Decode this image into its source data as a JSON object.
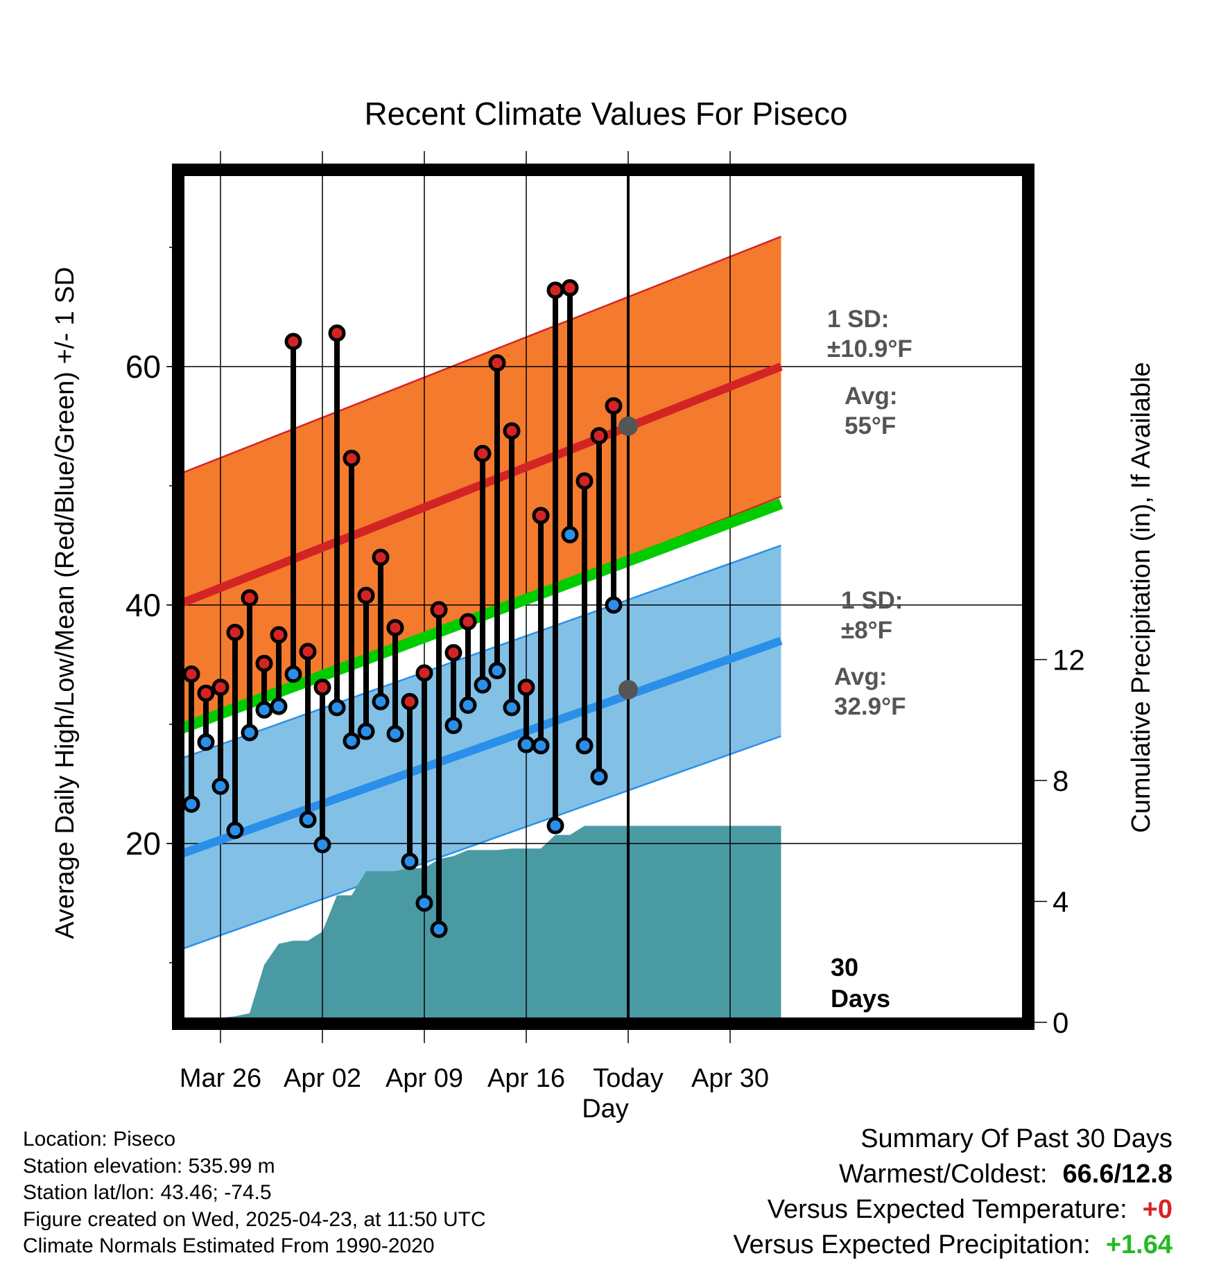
{
  "chart_data": {
    "type": "line",
    "title": "Recent Climate Values For Piseco",
    "xlabel": "Day",
    "ylabel": "Average Daily High/Low/Mean (Red/Blue/Green) +/- 1 SD",
    "y2label": "Cumulative Precipitation (in), If Available",
    "ylim": [
      5,
      76.5
    ],
    "y2lim": [
      0,
      28.2
    ],
    "x_range_days": [
      0,
      41.5
    ],
    "yticks": [
      20,
      40,
      60
    ],
    "y2ticks": [
      0,
      4,
      8,
      12
    ],
    "xtick_labels": [
      {
        "day": 3,
        "label": "Mar 26"
      },
      {
        "day": 10,
        "label": "Apr 02"
      },
      {
        "day": 17,
        "label": "Apr 09"
      },
      {
        "day": 24,
        "label": "Apr 16"
      },
      {
        "day": 31,
        "label": "Today"
      },
      {
        "day": 38,
        "label": "Apr 30"
      }
    ],
    "today_day": 31,
    "today_label": "30 Days",
    "normals": {
      "days": [
        0,
        41.5
      ],
      "high_avg": [
        40,
        60
      ],
      "high_sd": 10.9,
      "low_avg": [
        19,
        37
      ],
      "low_sd": 8,
      "mean": [
        29.5,
        48.5
      ],
      "today_high_avg": 55,
      "today_low_avg": 32.9
    },
    "annotations": {
      "high_sd_line1": "1 SD:",
      "high_sd_line2": "±10.9°F",
      "high_avg_line1": "Avg:",
      "high_avg_line2": "55°F",
      "low_sd_line1": "1 SD:",
      "low_sd_line2": "±8°F",
      "low_avg_line1": "Avg:",
      "low_avg_line2": "32.9°F"
    },
    "series": [
      {
        "name": "Daily High",
        "color": "#d32424",
        "days": [
          1,
          2,
          3,
          4,
          5,
          6,
          7,
          8,
          9,
          10,
          11,
          12,
          13,
          14,
          15,
          16,
          17,
          18,
          19,
          20,
          21,
          22,
          23,
          24,
          25,
          26,
          27,
          28,
          29,
          30
        ],
        "values": [
          34.2,
          32.6,
          33.1,
          37.7,
          40.6,
          35.1,
          37.5,
          62.1,
          36.1,
          33.1,
          62.8,
          52.3,
          40.8,
          44.0,
          38.1,
          31.9,
          34.3,
          39.6,
          36.0,
          38.6,
          52.7,
          60.3,
          54.6,
          33.1,
          47.5,
          66.4,
          66.6,
          50.4,
          54.2,
          56.7
        ]
      },
      {
        "name": "Daily Low",
        "color": "#2a8fe8",
        "days": [
          1,
          2,
          3,
          4,
          5,
          6,
          7,
          8,
          9,
          10,
          11,
          12,
          13,
          14,
          15,
          16,
          17,
          18,
          19,
          20,
          21,
          22,
          23,
          24,
          25,
          26,
          27,
          28,
          29,
          30
        ],
        "values": [
          23.3,
          28.5,
          24.8,
          21.1,
          29.3,
          31.2,
          31.5,
          34.2,
          22.0,
          19.9,
          31.4,
          28.6,
          29.4,
          31.9,
          29.2,
          18.5,
          15.0,
          12.8,
          29.9,
          31.6,
          33.3,
          34.5,
          31.4,
          28.3,
          28.2,
          21.5,
          45.9,
          28.2,
          25.6,
          40.0
        ]
      },
      {
        "name": "Cumulative Precipitation (in)",
        "days": [
          0.5,
          1,
          2,
          3,
          4,
          5,
          6,
          7,
          8,
          9,
          10,
          11,
          12,
          13,
          14,
          15,
          16,
          17,
          18,
          19,
          20,
          21,
          22,
          23,
          24,
          25,
          26,
          27,
          28,
          29,
          30,
          31,
          41.5
        ],
        "values": [
          0,
          0.05,
          0.1,
          0.15,
          0.2,
          0.3,
          1.9,
          2.6,
          2.7,
          2.7,
          3.0,
          4.2,
          4.2,
          5.0,
          5.0,
          5.0,
          5.1,
          5.1,
          5.4,
          5.5,
          5.7,
          5.7,
          5.7,
          5.75,
          5.75,
          5.75,
          6.2,
          6.2,
          6.5,
          6.5,
          6.5,
          6.5,
          6.5
        ]
      }
    ]
  },
  "footer": {
    "location": "Location: Piseco",
    "elevation": "Station elevation: 535.99 m",
    "latlon": "Station lat/lon: 43.46; -74.5",
    "created": "Figure created on Wed, 2025-04-23, at 11:50 UTC",
    "normals": "Climate Normals Estimated From 1990-2020"
  },
  "summary": {
    "title": "Summary Of Past 30 Days",
    "warm_label": "Warmest/Coldest:",
    "warm_value": "66.6/12.8",
    "temp_label": "Versus Expected Temperature:",
    "temp_value": "+0",
    "precip_label": "Versus Expected Precipitation:",
    "precip_value": "+1.64"
  }
}
